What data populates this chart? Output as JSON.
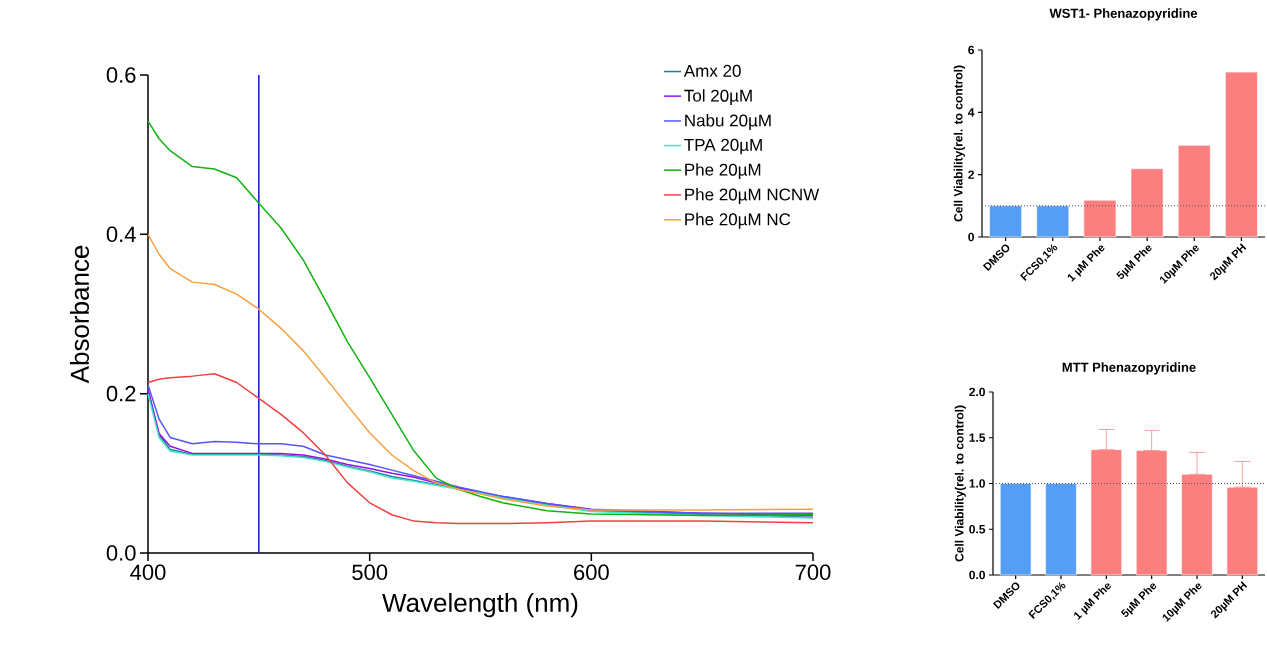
{
  "chart_data": [
    {
      "type": "line",
      "xlabel": "Wavelength (nm)",
      "ylabel": "Absorbance",
      "legend": "top right",
      "x": [
        400,
        405,
        410,
        420,
        430,
        440,
        450,
        460,
        470,
        480,
        490,
        500,
        510,
        520,
        530,
        540,
        550,
        560,
        580,
        600,
        650,
        700
      ],
      "series": [
        {
          "name": "Amx 20",
          "color": "#1f7f9f",
          "values": [
            0.205,
            0.148,
            0.13,
            0.124,
            0.124,
            0.124,
            0.124,
            0.123,
            0.121,
            0.116,
            0.109,
            0.103,
            0.096,
            0.091,
            0.086,
            0.081,
            0.076,
            0.07,
            0.061,
            0.053,
            0.048,
            0.045
          ]
        },
        {
          "name": "Tol 20µM",
          "color": "#9b10e6",
          "values": [
            0.205,
            0.15,
            0.134,
            0.125,
            0.125,
            0.125,
            0.125,
            0.125,
            0.123,
            0.118,
            0.111,
            0.106,
            0.1,
            0.095,
            0.088,
            0.082,
            0.076,
            0.071,
            0.062,
            0.055,
            0.05,
            0.047
          ]
        },
        {
          "name": "Nabu 20µM",
          "color": "#5555ff",
          "values": [
            0.211,
            0.168,
            0.145,
            0.137,
            0.14,
            0.139,
            0.137,
            0.137,
            0.134,
            0.123,
            0.117,
            0.111,
            0.104,
            0.097,
            0.09,
            0.083,
            0.077,
            0.071,
            0.062,
            0.054,
            0.05,
            0.05
          ]
        },
        {
          "name": "TPA 20µM",
          "color": "#3fe6bf",
          "values": [
            0.2,
            0.145,
            0.128,
            0.123,
            0.123,
            0.123,
            0.123,
            0.122,
            0.12,
            0.115,
            0.108,
            0.102,
            0.094,
            0.09,
            0.085,
            0.08,
            0.075,
            0.069,
            0.06,
            0.052,
            0.047,
            0.044
          ]
        },
        {
          "name": "Phe 20µM",
          "color": "#11b311",
          "values": [
            0.542,
            0.52,
            0.505,
            0.485,
            0.482,
            0.471,
            0.439,
            0.408,
            0.368,
            0.317,
            0.265,
            0.22,
            0.174,
            0.128,
            0.094,
            0.08,
            0.071,
            0.063,
            0.053,
            0.049,
            0.047,
            0.048
          ]
        },
        {
          "name": "Phe 20µM NCNW",
          "color": "#f04040",
          "values": [
            0.214,
            0.218,
            0.22,
            0.222,
            0.225,
            0.214,
            0.194,
            0.174,
            0.151,
            0.123,
            0.088,
            0.063,
            0.048,
            0.04,
            0.038,
            0.037,
            0.037,
            0.037,
            0.038,
            0.04,
            0.04,
            0.038
          ]
        },
        {
          "name": "Phe 20µM NC",
          "color": "#f7a040",
          "values": [
            0.4,
            0.375,
            0.357,
            0.34,
            0.337,
            0.325,
            0.306,
            0.282,
            0.254,
            0.22,
            0.185,
            0.151,
            0.123,
            0.103,
            0.088,
            0.08,
            0.074,
            0.068,
            0.059,
            0.054,
            0.054,
            0.055
          ]
        }
      ],
      "xlim": [
        400,
        700
      ],
      "xticks": [
        400,
        500,
        600,
        700
      ],
      "ylim": [
        0,
        0.6
      ],
      "yticks": [
        {
          "value": 0,
          "label": "0.0"
        },
        {
          "value": 0.2,
          "label": "0.2"
        },
        {
          "value": 0.4,
          "label": "0.4"
        },
        {
          "value": 0.6,
          "label": "0.6"
        }
      ],
      "ref_lines": [
        {
          "axis": "x",
          "value": 450,
          "color": "#1010d0"
        }
      ]
    },
    {
      "type": "bar",
      "title": "WST1- Phenazopyridine",
      "ylabel": "Cell Viability(rel. to control)",
      "categories": [
        "DMSO",
        "FCS0,1%",
        "1 µM Phe",
        "5µM Phe",
        "10µM Phe",
        "20µM PH"
      ],
      "values": [
        1.0,
        1.0,
        1.18,
        2.19,
        2.94,
        5.29
      ],
      "colors": [
        "#559ef5",
        "#559ef5",
        "#fc7f7f",
        "#fc7f7f",
        "#fc7f7f",
        "#fc7f7f"
      ],
      "ylim": [
        0,
        6
      ],
      "yticks": [
        0,
        2,
        4,
        6
      ],
      "ref_lines": [
        {
          "axis": "y",
          "value": 1,
          "color": "#555555",
          "line_style": "dotted"
        }
      ]
    },
    {
      "type": "bar",
      "title": "MTT Phenazopyridine",
      "ylabel": "Cell Viability(rel. to control)",
      "categories": [
        "DMSO",
        "FCS0,1%",
        "1 µM Phe",
        "5µM Phe",
        "10µM Phe",
        "20µM PH"
      ],
      "values": [
        1.0,
        1.0,
        1.37,
        1.36,
        1.1,
        0.96
      ],
      "errors": [
        null,
        null,
        [
          1.37,
          1.59
        ],
        [
          1.36,
          1.58
        ],
        [
          1.1,
          1.34
        ],
        [
          0.96,
          1.24
        ]
      ],
      "colors": [
        "#559ef5",
        "#559ef5",
        "#fc7f7f",
        "#fc7f7f",
        "#fc7f7f",
        "#fc7f7f"
      ],
      "ylim": [
        0,
        2.0
      ],
      "yticks": [
        {
          "value": 0,
          "label": "0.0"
        },
        {
          "value": 0.5,
          "label": "0.5"
        },
        {
          "value": 1.0,
          "label": "1.0"
        },
        {
          "value": 1.5,
          "label": "1.5"
        },
        {
          "value": 2.0,
          "label": "2.0"
        }
      ],
      "ref_lines": [
        {
          "axis": "y",
          "value": 1,
          "color": "#555555",
          "line_style": "dotted"
        }
      ]
    }
  ]
}
